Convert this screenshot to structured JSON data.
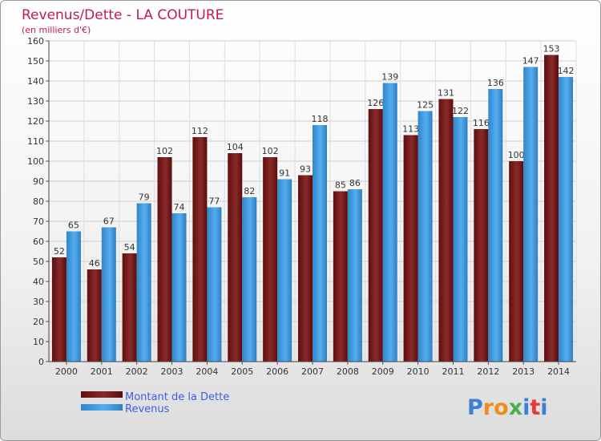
{
  "chart_data": {
    "type": "bar",
    "title": "Revenus/Dette - LA COUTURE",
    "subtitle": "(en milliers d'€)",
    "xlabel": "",
    "ylabel": "",
    "categories": [
      "2000",
      "2001",
      "2002",
      "2003",
      "2004",
      "2005",
      "2006",
      "2007",
      "2008",
      "2009",
      "2010",
      "2011",
      "2012",
      "2013",
      "2014"
    ],
    "series": [
      {
        "name": "Montant de la Dette",
        "color": "#7a1a1a",
        "values": [
          52,
          46,
          54,
          102,
          112,
          104,
          102,
          93,
          85,
          126,
          113,
          131,
          116,
          100,
          153
        ]
      },
      {
        "name": "Revenus",
        "color": "#3d9ee0",
        "values": [
          65,
          67,
          79,
          74,
          77,
          82,
          91,
          118,
          86,
          139,
          125,
          122,
          136,
          147,
          142
        ]
      }
    ],
    "ylim": [
      0,
      160
    ],
    "yticks": [
      0,
      10,
      20,
      30,
      40,
      50,
      60,
      70,
      80,
      90,
      100,
      110,
      120,
      130,
      140,
      150,
      160
    ],
    "grid": true,
    "legend_position": "bottom-left"
  },
  "logo": {
    "letters": [
      "P",
      "r",
      "o",
      "x",
      "i",
      "t",
      "i"
    ],
    "colors": [
      "#3b7fd9",
      "#f08c1e",
      "#f08c1e",
      "#4caf50",
      "#3b7fd9",
      "#e53935",
      "#3b7fd9"
    ]
  }
}
